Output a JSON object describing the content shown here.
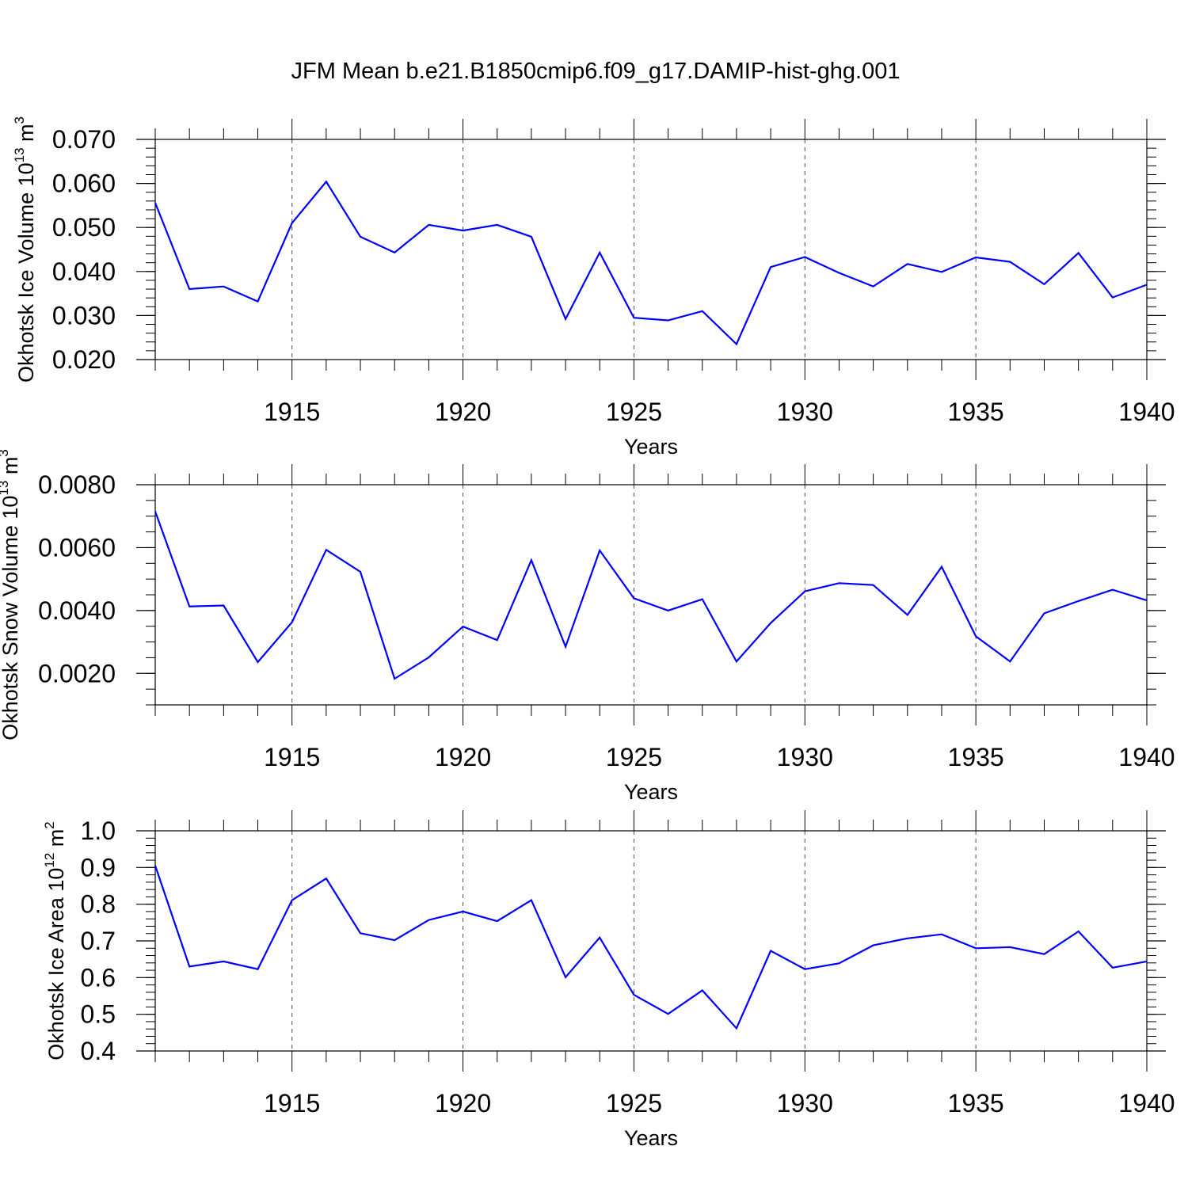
{
  "title": "JFM Mean b.e21.B1850cmip6.f09_g17.DAMIP-hist-ghg.001",
  "colors": {
    "line": "#0000ff",
    "axis": "#000000",
    "grid": "#000000"
  },
  "chart_data": [
    {
      "type": "line",
      "xlabel": "Years",
      "ylabel": {
        "text": "Okhotsk Ice Volume 10",
        "exp": "13",
        "unit": " m",
        "unit_exp": "3"
      },
      "xlim": [
        1911,
        1940
      ],
      "ylim": [
        0.02,
        0.07
      ],
      "xticks": [
        1915,
        1920,
        1925,
        1930,
        1935,
        1940
      ],
      "xtick_labels": [
        "1915",
        "1920",
        "1925",
        "1930",
        "1935",
        "1940"
      ],
      "yticks": [
        0.02,
        0.03,
        0.04,
        0.05,
        0.06,
        0.07
      ],
      "ytick_labels": [
        "0.020",
        "0.030",
        "0.040",
        "0.050",
        "0.060",
        "0.070"
      ],
      "y_minor_step": 0.002,
      "grid": "dashed vertical at major x ticks",
      "series": [
        {
          "name": "Ice Volume",
          "x": [
            1911,
            1912,
            1913,
            1914,
            1915,
            1916,
            1917,
            1918,
            1919,
            1920,
            1921,
            1922,
            1923,
            1924,
            1925,
            1926,
            1927,
            1928,
            1929,
            1930,
            1931,
            1932,
            1933,
            1934,
            1935,
            1936,
            1937,
            1938,
            1939,
            1940
          ],
          "y": [
            0.0556,
            0.036,
            0.0366,
            0.0332,
            0.051,
            0.0604,
            0.0479,
            0.0443,
            0.0506,
            0.0493,
            0.0506,
            0.0479,
            0.0292,
            0.0443,
            0.0295,
            0.0289,
            0.031,
            0.0235,
            0.041,
            0.0433,
            0.0397,
            0.0366,
            0.0417,
            0.0399,
            0.0432,
            0.0422,
            0.0371,
            0.0442,
            0.0341,
            0.037
          ]
        }
      ]
    },
    {
      "type": "line",
      "xlabel": "Years",
      "ylabel": {
        "text": "Okhotsk Snow Volume 10",
        "exp": "13",
        "unit": " m",
        "unit_exp": "3"
      },
      "xlim": [
        1911,
        1940
      ],
      "ylim": [
        0.001,
        0.008
      ],
      "xticks": [
        1915,
        1920,
        1925,
        1930,
        1935,
        1940
      ],
      "xtick_labels": [
        "1915",
        "1920",
        "1925",
        "1930",
        "1935",
        "1940"
      ],
      "yticks": [
        0.002,
        0.004,
        0.006,
        0.008
      ],
      "ytick_labels": [
        "0.0020",
        "0.0040",
        "0.0060",
        "0.0080"
      ],
      "y_minor_step": 0.0005,
      "grid": "dashed vertical at major x ticks",
      "series": [
        {
          "name": "Snow Volume",
          "x": [
            1911,
            1912,
            1913,
            1914,
            1915,
            1916,
            1917,
            1918,
            1919,
            1920,
            1921,
            1922,
            1923,
            1924,
            1925,
            1926,
            1927,
            1928,
            1929,
            1930,
            1931,
            1932,
            1933,
            1934,
            1935,
            1936,
            1937,
            1938,
            1939,
            1940
          ],
          "y": [
            0.00715,
            0.00413,
            0.00416,
            0.00236,
            0.00363,
            0.00593,
            0.00523,
            0.00183,
            0.00251,
            0.00349,
            0.00306,
            0.0056,
            0.00285,
            0.00591,
            0.00439,
            0.004,
            0.00436,
            0.00238,
            0.0036,
            0.00461,
            0.00487,
            0.00481,
            0.00386,
            0.00539,
            0.00318,
            0.00238,
            0.00391,
            0.0043,
            0.00466,
            0.00432
          ]
        }
      ]
    },
    {
      "type": "line",
      "xlabel": "Years",
      "ylabel": {
        "text": "Okhotsk Ice Area 10",
        "exp": "12",
        "unit": " m",
        "unit_exp": "2"
      },
      "xlim": [
        1911,
        1940
      ],
      "ylim": [
        0.4,
        1.0
      ],
      "xticks": [
        1915,
        1920,
        1925,
        1930,
        1935,
        1940
      ],
      "xtick_labels": [
        "1915",
        "1920",
        "1925",
        "1930",
        "1935",
        "1940"
      ],
      "yticks": [
        0.4,
        0.5,
        0.6,
        0.7,
        0.8,
        0.9,
        1.0
      ],
      "ytick_labels": [
        "0.4",
        "0.5",
        "0.6",
        "0.7",
        "0.8",
        "0.9",
        "1.0"
      ],
      "y_minor_step": 0.02,
      "grid": "dashed vertical at major x ticks",
      "series": [
        {
          "name": "Ice Area",
          "x": [
            1911,
            1912,
            1913,
            1914,
            1915,
            1916,
            1917,
            1918,
            1919,
            1920,
            1921,
            1922,
            1923,
            1924,
            1925,
            1926,
            1927,
            1928,
            1929,
            1930,
            1931,
            1932,
            1933,
            1934,
            1935,
            1936,
            1937,
            1938,
            1939,
            1940
          ],
          "y": [
            0.905,
            0.63,
            0.644,
            0.623,
            0.811,
            0.87,
            0.721,
            0.702,
            0.757,
            0.78,
            0.754,
            0.811,
            0.601,
            0.709,
            0.553,
            0.501,
            0.565,
            0.462,
            0.673,
            0.623,
            0.639,
            0.688,
            0.707,
            0.718,
            0.68,
            0.683,
            0.664,
            0.726,
            0.627,
            0.644
          ]
        }
      ]
    }
  ]
}
